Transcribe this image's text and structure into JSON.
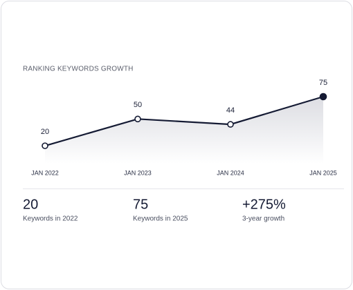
{
  "chart_data": {
    "type": "line",
    "title": "RANKING KEYWORDS GROWTH",
    "categories": [
      "JAN 2022",
      "JAN 2023",
      "JAN 2024",
      "JAN 2025"
    ],
    "values": [
      20,
      50,
      44,
      75
    ],
    "color": "#141a33"
  },
  "stats": [
    {
      "value": "20",
      "label": "Keywords in 2022"
    },
    {
      "value": "75",
      "label": "Keywords in 2025"
    },
    {
      "value": "+275%",
      "label": "3-year growth"
    }
  ]
}
